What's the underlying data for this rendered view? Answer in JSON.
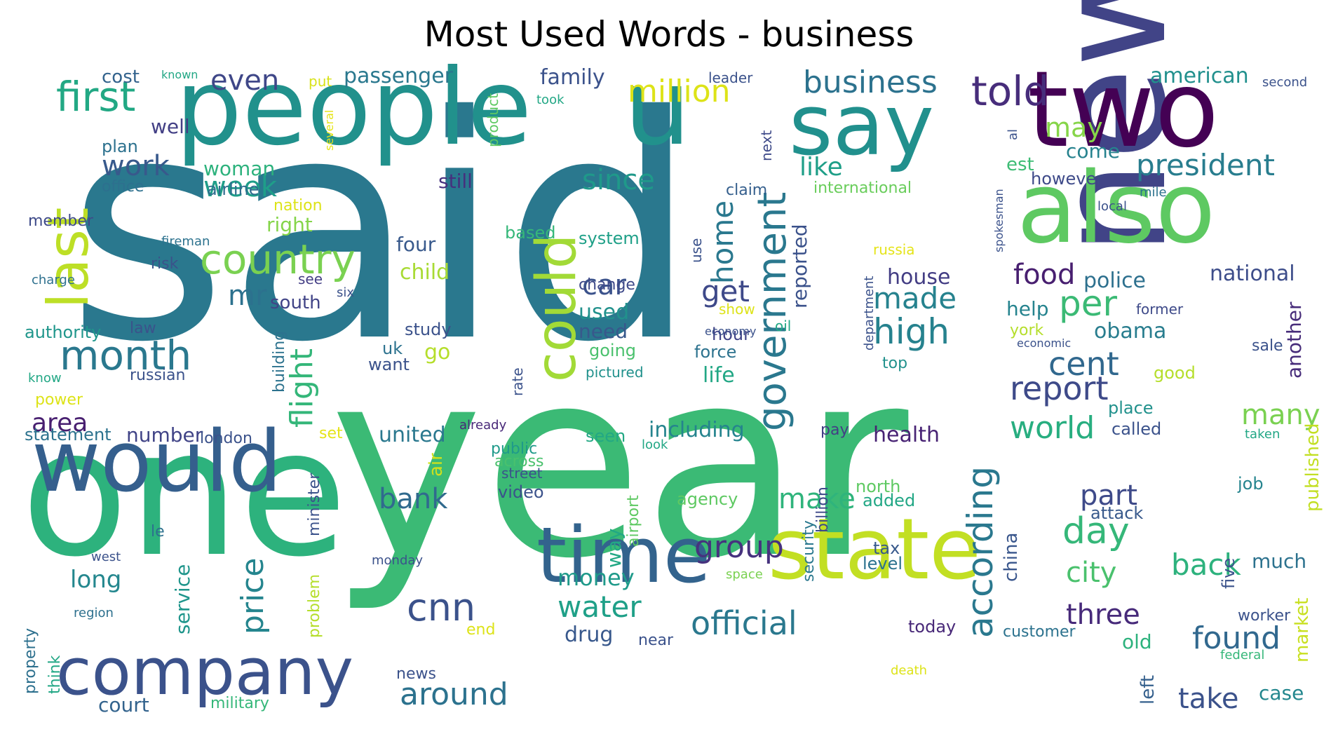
{
  "chart_data": {
    "type": "wordcloud",
    "title": "Most Used Words - business",
    "colormap": "viridis",
    "words": [
      {
        "text": "said",
        "color": "#2a788e"
      },
      {
        "text": "year",
        "color": "#3bba75"
      },
      {
        "text": "one",
        "color": "#2db27d"
      },
      {
        "text": "people",
        "color": "#21918c"
      },
      {
        "text": "new",
        "color": "#414487"
      },
      {
        "text": "u",
        "color": "#21918c"
      },
      {
        "text": "say",
        "color": "#21908d"
      },
      {
        "text": "two",
        "color": "#440154"
      },
      {
        "text": "also",
        "color": "#5ec962"
      },
      {
        "text": "state",
        "color": "#c2df23"
      },
      {
        "text": "time",
        "color": "#33638d"
      },
      {
        "text": "would",
        "color": "#355f8d"
      },
      {
        "text": "last",
        "color": "#bddf26"
      },
      {
        "text": "company",
        "color": "#3b528b"
      },
      {
        "text": "could",
        "color": "#a2da37"
      },
      {
        "text": "country",
        "color": "#7ad151"
      },
      {
        "text": "first",
        "color": "#22a884"
      },
      {
        "text": "month",
        "color": "#2a788e"
      },
      {
        "text": "told",
        "color": "#472d7b"
      },
      {
        "text": "government",
        "color": "#2a788e"
      },
      {
        "text": "according",
        "color": "#2a788e"
      },
      {
        "text": "cnn",
        "color": "#3b528b"
      },
      {
        "text": "per",
        "color": "#3bba75"
      },
      {
        "text": "high",
        "color": "#26828e"
      },
      {
        "text": "cent",
        "color": "#31688e"
      },
      {
        "text": "business",
        "color": "#2c728e"
      },
      {
        "text": "president",
        "color": "#287d8e"
      },
      {
        "text": "million",
        "color": "#dde318"
      },
      {
        "text": "day",
        "color": "#35b779"
      },
      {
        "text": "official",
        "color": "#2a788e"
      },
      {
        "text": "flight",
        "color": "#34b679"
      },
      {
        "text": "world",
        "color": "#28ae80"
      },
      {
        "text": "report",
        "color": "#3e4a89"
      },
      {
        "text": "food",
        "color": "#481f70"
      },
      {
        "text": "made",
        "color": "#26828e"
      },
      {
        "text": "group",
        "color": "#46327e"
      },
      {
        "text": "price",
        "color": "#25858e"
      },
      {
        "text": "since",
        "color": "#1f998a"
      },
      {
        "text": "week",
        "color": "#1f9e89"
      },
      {
        "text": "like",
        "color": "#1f9f88"
      },
      {
        "text": "found",
        "color": "#31688e"
      },
      {
        "text": "three",
        "color": "#472a7a"
      },
      {
        "text": "city",
        "color": "#4ac16d"
      },
      {
        "text": "back",
        "color": "#2db27d"
      },
      {
        "text": "water",
        "color": "#1fa088"
      },
      {
        "text": "around",
        "color": "#2c728e"
      },
      {
        "text": "car",
        "color": "#3b528b"
      },
      {
        "text": "home",
        "color": "#2a788e"
      },
      {
        "text": "get",
        "color": "#3e4989"
      },
      {
        "text": "mr",
        "color": "#2c718e"
      },
      {
        "text": "work",
        "color": "#38598c"
      },
      {
        "text": "even",
        "color": "#3f4788"
      },
      {
        "text": "may",
        "color": "#86d549"
      },
      {
        "text": "part",
        "color": "#3e4a89"
      },
      {
        "text": "make",
        "color": "#2fb47c"
      },
      {
        "text": "bank",
        "color": "#306a8e"
      },
      {
        "text": "many",
        "color": "#7ad151"
      },
      {
        "text": "take",
        "color": "#3b528b"
      },
      {
        "text": "area",
        "color": "#481f70"
      },
      {
        "text": "long",
        "color": "#24878e"
      },
      {
        "text": "money",
        "color": "#1f9a8a"
      },
      {
        "text": "police",
        "color": "#2d708e"
      },
      {
        "text": "house",
        "color": "#433d84"
      },
      {
        "text": "health",
        "color": "#482374"
      },
      {
        "text": "united",
        "color": "#2a788e"
      },
      {
        "text": "including",
        "color": "#25848e"
      },
      {
        "text": "obama",
        "color": "#287d8e"
      },
      {
        "text": "national",
        "color": "#3d4d8a"
      },
      {
        "text": "american",
        "color": "#21908d"
      },
      {
        "text": "passenger",
        "color": "#2a788e"
      },
      {
        "text": "family",
        "color": "#3b528b"
      },
      {
        "text": "come",
        "color": "#26828e"
      },
      {
        "text": "help",
        "color": "#25838e"
      },
      {
        "text": "reported",
        "color": "#3b528b"
      },
      {
        "text": "another",
        "color": "#472c7a"
      },
      {
        "text": "market",
        "color": "#c8e020"
      },
      {
        "text": "much",
        "color": "#2c728e"
      },
      {
        "text": "five",
        "color": "#3b528b"
      },
      {
        "text": "case",
        "color": "#24878e"
      },
      {
        "text": "old",
        "color": "#2db27d"
      },
      {
        "text": "left",
        "color": "#35608d"
      },
      {
        "text": "drug",
        "color": "#38588c"
      },
      {
        "text": "go",
        "color": "#b5de2b"
      },
      {
        "text": "life",
        "color": "#22a785"
      },
      {
        "text": "child",
        "color": "#a8db34"
      },
      {
        "text": "used",
        "color": "#21918c"
      },
      {
        "text": "need",
        "color": "#38588c"
      },
      {
        "text": "way",
        "color": "#22a884"
      },
      {
        "text": "china",
        "color": "#39568c"
      },
      {
        "text": "service",
        "color": "#1f958b"
      },
      {
        "text": "court",
        "color": "#33638d"
      },
      {
        "text": "right",
        "color": "#85d54a"
      },
      {
        "text": "four",
        "color": "#38598c"
      },
      {
        "text": "south",
        "color": "#414487"
      },
      {
        "text": "still",
        "color": "#46307e"
      },
      {
        "text": "woman",
        "color": "#2db27d"
      },
      {
        "text": "well",
        "color": "#423f85"
      },
      {
        "text": "cost",
        "color": "#33638d"
      },
      {
        "text": "number",
        "color": "#414487"
      },
      {
        "text": "hour",
        "color": "#414487"
      },
      {
        "text": "est",
        "color": "#3dbc74"
      },
      {
        "text": "however",
        "color": "#3e4a89"
      },
      {
        "text": "airline",
        "color": "#2f6c8e"
      },
      {
        "text": "office",
        "color": "#2d708e"
      },
      {
        "text": "plan",
        "color": "#2c718e"
      },
      {
        "text": "going",
        "color": "#4ac16d"
      },
      {
        "text": "study",
        "color": "#3b528b"
      },
      {
        "text": "force",
        "color": "#2c728e"
      },
      {
        "text": "russian",
        "color": "#3b528b"
      },
      {
        "text": "law",
        "color": "#3b528b"
      },
      {
        "text": "want",
        "color": "#3b528b"
      },
      {
        "text": "uk",
        "color": "#2c728e"
      },
      {
        "text": "claim",
        "color": "#355f8d"
      },
      {
        "text": "international",
        "color": "#69cd5b"
      },
      {
        "text": "system",
        "color": "#1fa088"
      },
      {
        "text": "change",
        "color": "#3e4989"
      },
      {
        "text": "based",
        "color": "#35b779"
      },
      {
        "text": "risk",
        "color": "#3b528b"
      },
      {
        "text": "see",
        "color": "#433e85"
      },
      {
        "text": "authority",
        "color": "#1f968b"
      },
      {
        "text": "member",
        "color": "#3e4a89"
      },
      {
        "text": "fireman",
        "color": "#2c728e"
      },
      {
        "text": "charge",
        "color": "#2d708e"
      },
      {
        "text": "six",
        "color": "#3b528b"
      },
      {
        "text": "know",
        "color": "#22a785"
      },
      {
        "text": "power",
        "color": "#dde318"
      },
      {
        "text": "statement",
        "color": "#2c728e"
      },
      {
        "text": "london",
        "color": "#3b528b"
      },
      {
        "text": "set",
        "color": "#e5e419"
      },
      {
        "text": "air",
        "color": "#d0e11c"
      },
      {
        "text": "public",
        "color": "#1f9a8a"
      },
      {
        "text": "across",
        "color": "#4ac16d"
      },
      {
        "text": "street",
        "color": "#3b528b"
      },
      {
        "text": "video",
        "color": "#3b528b"
      },
      {
        "text": "seen",
        "color": "#22a884"
      },
      {
        "text": "look",
        "color": "#22a785"
      },
      {
        "text": "already",
        "color": "#482878"
      },
      {
        "text": "pay",
        "color": "#433e85"
      },
      {
        "text": "called",
        "color": "#3b528b"
      },
      {
        "text": "taken",
        "color": "#22a785"
      },
      {
        "text": "good",
        "color": "#b5de2b"
      },
      {
        "text": "sale",
        "color": "#3b528b"
      },
      {
        "text": "place",
        "color": "#21918c"
      },
      {
        "text": "agency",
        "color": "#5ec962"
      },
      {
        "text": "north",
        "color": "#5ec962"
      },
      {
        "text": "added",
        "color": "#22a785"
      },
      {
        "text": "attack",
        "color": "#38598c"
      },
      {
        "text": "published",
        "color": "#c2df23"
      },
      {
        "text": "job",
        "color": "#25848e"
      },
      {
        "text": "tax",
        "color": "#38598c"
      },
      {
        "text": "level",
        "color": "#2c728e"
      },
      {
        "text": "le",
        "color": "#2d708e"
      },
      {
        "text": "west",
        "color": "#3b528b"
      },
      {
        "text": "monday",
        "color": "#3b528b"
      },
      {
        "text": "space",
        "color": "#7ad151"
      },
      {
        "text": "region",
        "color": "#2d708e"
      },
      {
        "text": "security",
        "color": "#2a788e"
      },
      {
        "text": "billion",
        "color": "#3e4a89"
      },
      {
        "text": "minister",
        "color": "#3b528b"
      },
      {
        "text": "problem",
        "color": "#b5de2b"
      },
      {
        "text": "property",
        "color": "#2d708e"
      },
      {
        "text": "think",
        "color": "#22a785"
      },
      {
        "text": "military",
        "color": "#35b779"
      },
      {
        "text": "news",
        "color": "#3b528b"
      },
      {
        "text": "end",
        "color": "#dde318"
      },
      {
        "text": "today",
        "color": "#482878"
      },
      {
        "text": "near",
        "color": "#3b528b"
      },
      {
        "text": "customer",
        "color": "#2c728e"
      },
      {
        "text": "worker",
        "color": "#3b528b"
      },
      {
        "text": "federal",
        "color": "#35b779"
      },
      {
        "text": "death",
        "color": "#dde318"
      },
      {
        "text": "airport",
        "color": "#5ec962"
      },
      {
        "text": "building",
        "color": "#2c728e"
      },
      {
        "text": "rate",
        "color": "#3b528b"
      },
      {
        "text": "pictured",
        "color": "#21918c"
      },
      {
        "text": "top",
        "color": "#21918c"
      },
      {
        "text": "oil",
        "color": "#22a785"
      },
      {
        "text": "economy",
        "color": "#3b528b"
      },
      {
        "text": "show",
        "color": "#dde318"
      },
      {
        "text": "department",
        "color": "#3b528b"
      },
      {
        "text": "york",
        "color": "#b5de2b"
      },
      {
        "text": "economic",
        "color": "#3b528b"
      },
      {
        "text": "former",
        "color": "#3e4a89"
      },
      {
        "text": "russia",
        "color": "#e5e419"
      },
      {
        "text": "use",
        "color": "#3b528b"
      },
      {
        "text": "next",
        "color": "#3e4a89"
      },
      {
        "text": "leader",
        "color": "#3b528b"
      },
      {
        "text": "took",
        "color": "#22a785"
      },
      {
        "text": "product",
        "color": "#5ec962"
      },
      {
        "text": "put",
        "color": "#d8e219"
      },
      {
        "text": "several",
        "color": "#e5e419"
      },
      {
        "text": "known",
        "color": "#22a785"
      },
      {
        "text": "second",
        "color": "#3b528b"
      },
      {
        "text": "mile",
        "color": "#2c728e"
      },
      {
        "text": "local",
        "color": "#3b528b"
      },
      {
        "text": "spokesman",
        "color": "#3b528b"
      },
      {
        "text": "al",
        "color": "#3b528b"
      },
      {
        "text": "nation",
        "color": "#dde318"
      }
    ]
  }
}
